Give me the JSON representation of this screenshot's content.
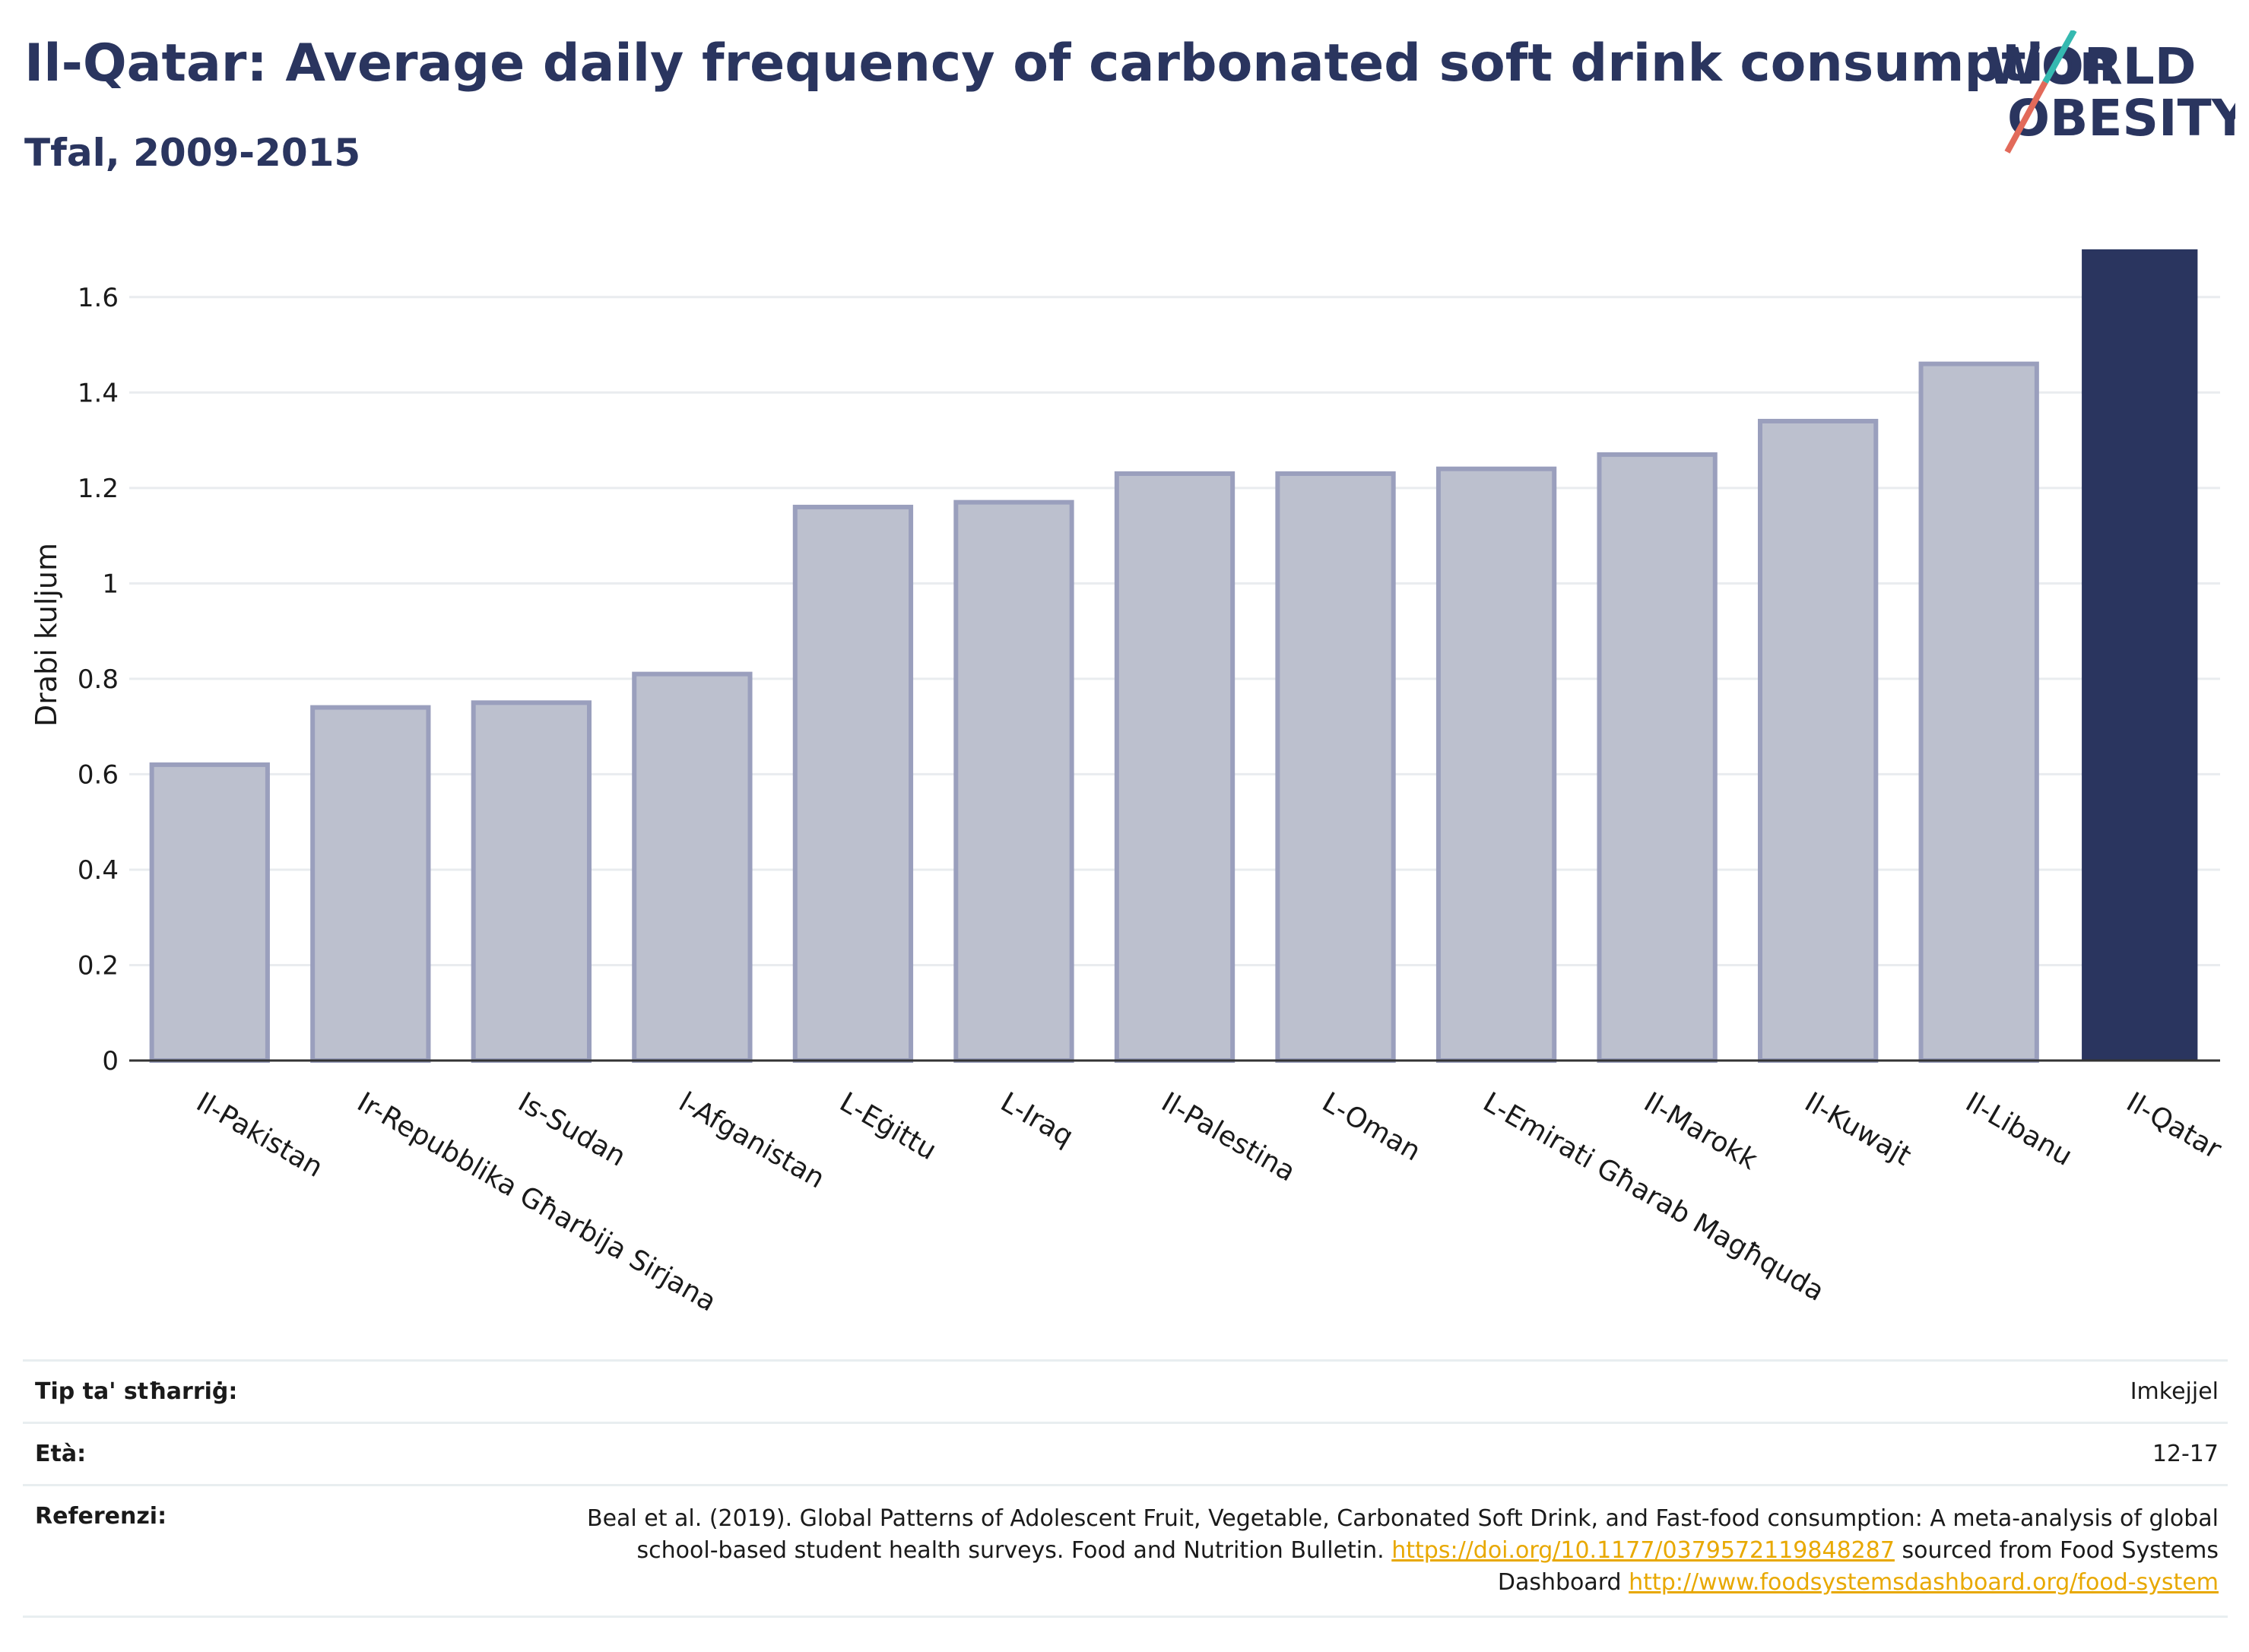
{
  "title": "Il-Qatar: Average daily frequency of carbonated soft drink consumption",
  "subtitle": "Tfal, 2009-2015",
  "logo": {
    "line1": "WORLD",
    "line2": "OBESITY"
  },
  "colors": {
    "highlight": "#2a355f",
    "bar": "#bcc0ce",
    "bar_edge": "#9a9fbd",
    "title": "#2a355f",
    "link": "#e8a800"
  },
  "chart_data": {
    "type": "bar",
    "ylabel": "Drabi kuljum",
    "xlabel": "",
    "ylim": [
      0,
      1.7
    ],
    "yticks": [
      0,
      0.2,
      0.4,
      0.6,
      0.8,
      1,
      1.2,
      1.4,
      1.6
    ],
    "ytick_labels": [
      "0",
      "0.2",
      "0.4",
      "0.6",
      "0.8",
      "1",
      "1.2",
      "1.4",
      "1.6"
    ],
    "grid": true,
    "categories": [
      "Il-Pakistan",
      "Ir-Repubblika Għarbija Sirjana",
      "Is-Sudan",
      "l-Afganistan",
      "L-Eġittu",
      "L-Iraq",
      "Il-Palestina",
      "L-Oman",
      "L-Emirati Għarab Magħquda",
      "Il-Marokk",
      "Il-Kuwajt",
      "Il-Libanu",
      "Il-Qatar"
    ],
    "values": [
      0.62,
      0.74,
      0.75,
      0.81,
      1.16,
      1.17,
      1.23,
      1.23,
      1.24,
      1.27,
      1.34,
      1.46,
      1.7
    ],
    "highlight": "Il-Qatar"
  },
  "footer": {
    "rows": [
      {
        "label": "Tip ta' stħarriġ:",
        "value": "Imkejjel"
      },
      {
        "label": "Età:",
        "value": "12-17"
      }
    ],
    "reference": {
      "label": "Referenzi:",
      "text1": "Beal et al. (2019). Global Patterns of Adolescent Fruit, Vegetable, Carbonated Soft Drink, and Fast-food consumption: A meta-analysis of global school-based student health surveys. Food and Nutrition Bulletin.",
      "link1": "https://doi.org/10.1177/0379572119848287",
      "text2": "sourced from Food Systems Dashboard",
      "link2": "http://www.foodsystemsdashboard.org/food-system"
    }
  }
}
